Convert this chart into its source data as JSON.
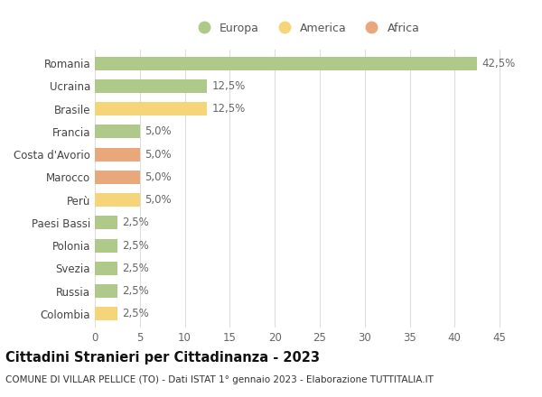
{
  "categories": [
    "Romania",
    "Ucraina",
    "Brasile",
    "Francia",
    "Costa d'Avorio",
    "Marocco",
    "Perù",
    "Paesi Bassi",
    "Polonia",
    "Svezia",
    "Russia",
    "Colombia"
  ],
  "values": [
    42.5,
    12.5,
    12.5,
    5.0,
    5.0,
    5.0,
    5.0,
    2.5,
    2.5,
    2.5,
    2.5,
    2.5
  ],
  "labels": [
    "42,5%",
    "12,5%",
    "12,5%",
    "5,0%",
    "5,0%",
    "5,0%",
    "5,0%",
    "2,5%",
    "2,5%",
    "2,5%",
    "2,5%",
    "2,5%"
  ],
  "continents": [
    "Europa",
    "Europa",
    "America",
    "Europa",
    "Africa",
    "Africa",
    "America",
    "Europa",
    "Europa",
    "Europa",
    "Europa",
    "America"
  ],
  "colors": {
    "Europa": "#aec98a",
    "America": "#f5d47a",
    "Africa": "#e8a87c"
  },
  "legend_order": [
    "Europa",
    "America",
    "Africa"
  ],
  "xlim": [
    0,
    47
  ],
  "xticks": [
    0,
    5,
    10,
    15,
    20,
    25,
    30,
    35,
    40,
    45
  ],
  "title": "Cittadini Stranieri per Cittadinanza - 2023",
  "subtitle": "COMUNE DI VILLAR PELLICE (TO) - Dati ISTAT 1° gennaio 2023 - Elaborazione TUTTITALIA.IT",
  "background_color": "#ffffff",
  "grid_color": "#dddddd",
  "bar_height": 0.6,
  "label_fontsize": 8.5,
  "tick_fontsize": 8.5,
  "title_fontsize": 10.5,
  "subtitle_fontsize": 7.5,
  "legend_fontsize": 9
}
